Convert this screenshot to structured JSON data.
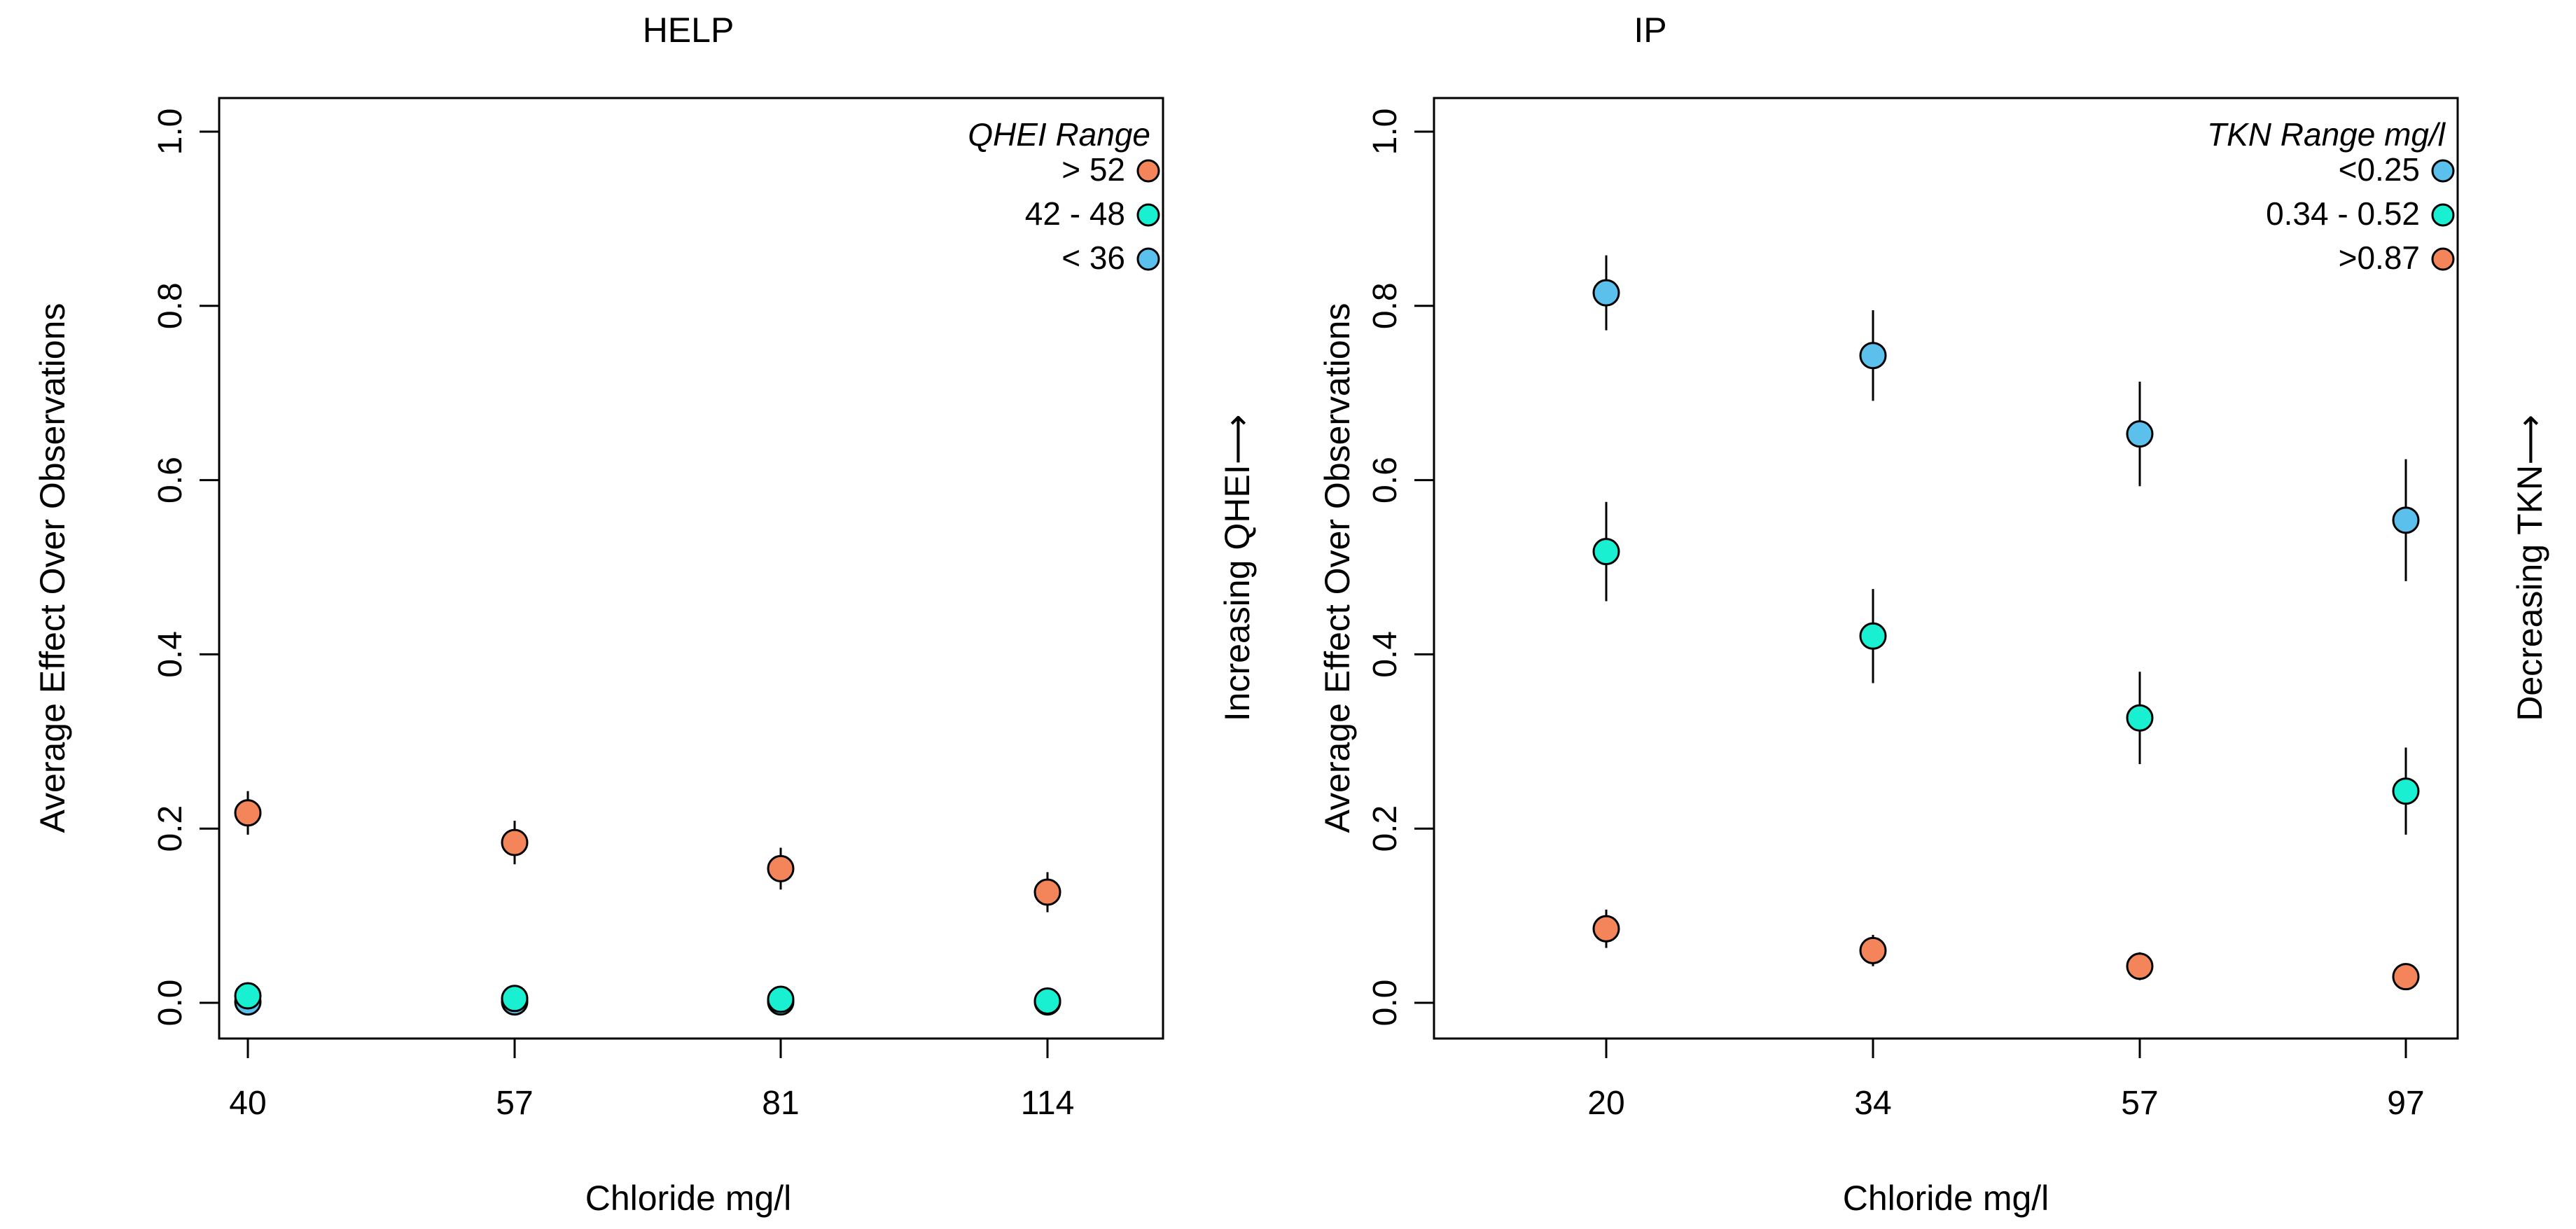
{
  "chart_data": [
    {
      "type": "scatter",
      "title": "HELP",
      "xlabel": "Chloride mg/l",
      "ylabel": "Average Effect Over Observations",
      "side_label": "Increasing QHEI⟶",
      "categories": [
        "40",
        "57",
        "81",
        "114"
      ],
      "ylim": [
        0,
        1.0
      ],
      "yticks": [
        "0.0",
        "0.2",
        "0.4",
        "0.6",
        "0.8",
        "1.0"
      ],
      "legend": {
        "title": "QHEI Range",
        "position": "top-right",
        "entries": [
          {
            "label": "> 52",
            "color": "#F4855A"
          },
          {
            "label": "42 - 48",
            "color": "#19F0D2"
          },
          {
            "label": "< 36",
            "color": "#5BC0EB"
          }
        ]
      },
      "series": [
        {
          "name": "< 36",
          "color": "#5BC0EB",
          "values": [
            0.001,
            0.001,
            0.001,
            0.001
          ],
          "err": [
            0.002,
            0.002,
            0.002,
            0.002
          ]
        },
        {
          "name": "42 - 48",
          "color": "#19F0D2",
          "values": [
            0.008,
            0.005,
            0.004,
            0.002
          ],
          "err": [
            0.006,
            0.005,
            0.004,
            0.003
          ]
        },
        {
          "name": "> 52",
          "color": "#F4855A",
          "values": [
            0.218,
            0.184,
            0.154,
            0.127
          ],
          "err": [
            0.025,
            0.025,
            0.024,
            0.023
          ]
        }
      ]
    },
    {
      "type": "scatter",
      "title": "IP",
      "xlabel": "Chloride mg/l",
      "ylabel": "Average Effect Over Observations",
      "side_label": "Decreasing TKN⟶",
      "categories": [
        "20",
        "34",
        "57",
        "97"
      ],
      "ylim": [
        0,
        1.0
      ],
      "yticks": [
        "0.0",
        "0.2",
        "0.4",
        "0.6",
        "0.8",
        "1.0"
      ],
      "legend": {
        "title": "TKN Range mg/l",
        "position": "top-right",
        "entries": [
          {
            "label": "<0.25",
            "color": "#5BC0EB"
          },
          {
            "label": "0.34 - 0.52",
            "color": "#19F0D2"
          },
          {
            "label": ">0.87",
            "color": "#F4855A"
          }
        ]
      },
      "series": [
        {
          "name": "<0.25",
          "color": "#5BC0EB",
          "values": [
            0.815,
            0.743,
            0.653,
            0.554
          ],
          "err": [
            0.043,
            0.052,
            0.06,
            0.07
          ]
        },
        {
          "name": "0.34 - 0.52",
          "color": "#19F0D2",
          "values": [
            0.518,
            0.421,
            0.327,
            0.243
          ],
          "err": [
            0.057,
            0.054,
            0.053,
            0.05
          ]
        },
        {
          "name": ">0.87",
          "color": "#F4855A",
          "values": [
            0.085,
            0.06,
            0.042,
            0.03
          ],
          "err": [
            0.022,
            0.018,
            0.016,
            0.013
          ]
        }
      ]
    }
  ]
}
